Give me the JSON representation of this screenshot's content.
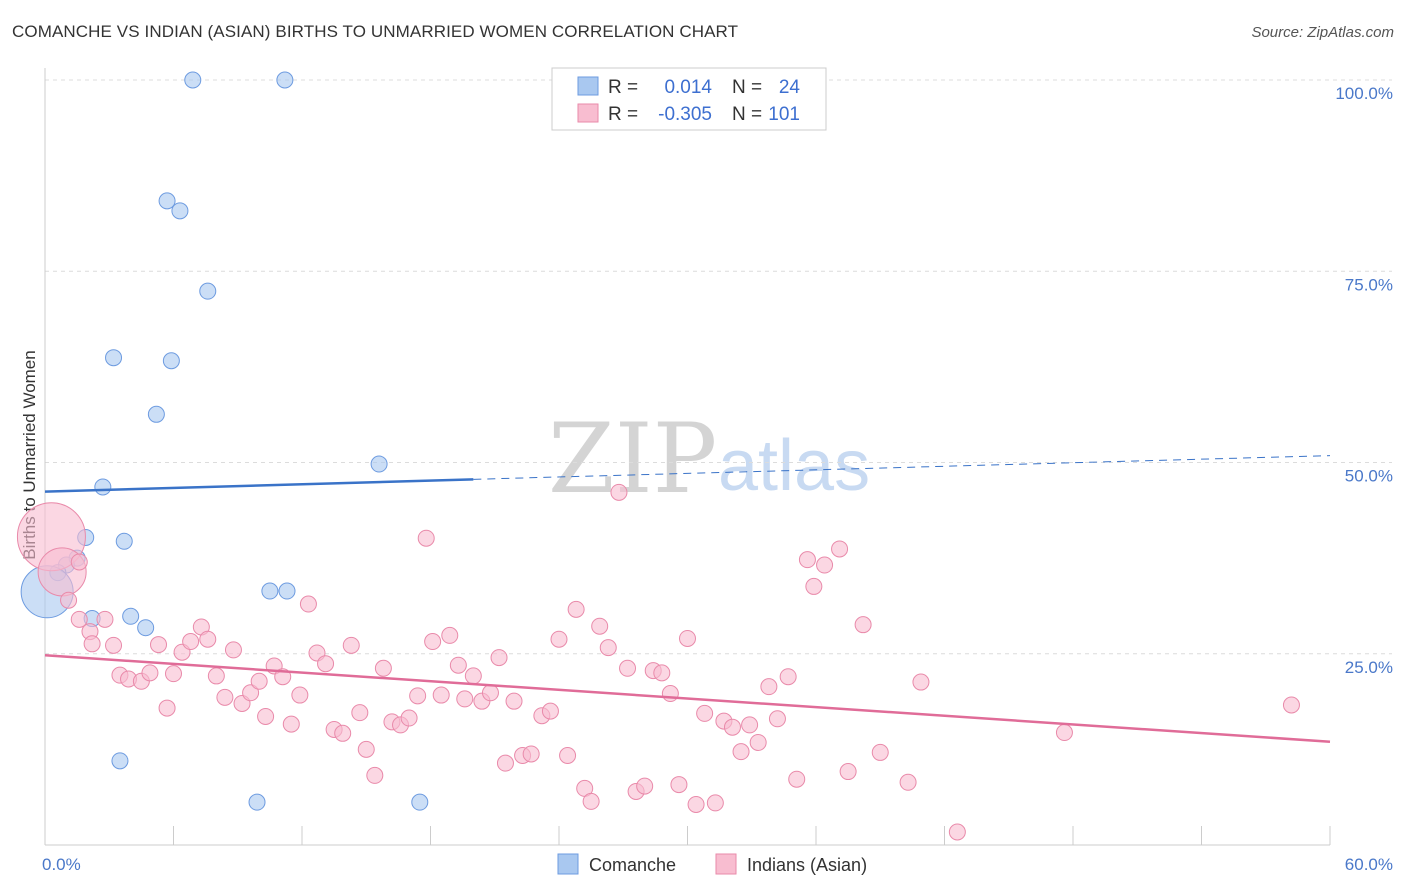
{
  "title": "COMANCHE VS INDIAN (ASIAN) BIRTHS TO UNMARRIED WOMEN CORRELATION CHART",
  "source": "Source: ZipAtlas.com",
  "watermark": {
    "part1": "ZIP",
    "part2": "atlas"
  },
  "legend": {
    "rows": [
      {
        "r_label": "R =",
        "r_value": "0.014",
        "n_label": "N =",
        "n_value": "24",
        "color": "#a9c8f0",
        "stroke": "#6d9be0"
      },
      {
        "r_label": "R =",
        "r_value": "-0.305",
        "n_label": "N =",
        "n_value": "101",
        "color": "#f8bdd0",
        "stroke": "#e98aaa"
      }
    ]
  },
  "bottom_legend": [
    {
      "label": "Comanche",
      "color": "#a9c8f0",
      "stroke": "#6d9be0"
    },
    {
      "label": "Indians (Asian)",
      "color": "#f8bdd0",
      "stroke": "#e98aaa"
    }
  ],
  "chart_data": {
    "type": "scatter",
    "xlabel": "",
    "ylabel": "Births to Unmarried Women",
    "xlim": [
      0,
      60
    ],
    "ylim": [
      0,
      100
    ],
    "x_ticks": [
      {
        "value": 0,
        "label": "0.0%"
      },
      {
        "value": 60,
        "label": "60.0%"
      }
    ],
    "y_ticks": [
      {
        "value": 25,
        "label": "25.0%"
      },
      {
        "value": 50,
        "label": "50.0%"
      },
      {
        "value": 75,
        "label": "75.0%"
      },
      {
        "value": 100,
        "label": "100.0%"
      }
    ],
    "grid": true,
    "series": [
      {
        "name": "Comanche",
        "color": "#a9c8f0",
        "stroke": "#6d9be0",
        "trend": {
          "x0": 0,
          "y0": 46.2,
          "x1": 20,
          "y1": 47.8,
          "dash_to_x": 60,
          "dash_to_y": 50.9,
          "color": "#3a73c8"
        },
        "points": [
          [
            6.9,
            100
          ],
          [
            11.2,
            100
          ],
          [
            5.7,
            84.2
          ],
          [
            6.3,
            82.9
          ],
          [
            7.6,
            72.4
          ],
          [
            3.2,
            63.7
          ],
          [
            5.9,
            63.3
          ],
          [
            5.2,
            56.3
          ],
          [
            15.6,
            49.8
          ],
          [
            2.7,
            46.8
          ],
          [
            1.9,
            40.2
          ],
          [
            3.7,
            39.7
          ],
          [
            1.5,
            37.5
          ],
          [
            1.0,
            36.6
          ],
          [
            0.6,
            35.6
          ],
          [
            0.1,
            33.1
          ],
          [
            10.5,
            33.2
          ],
          [
            11.3,
            33.2
          ],
          [
            2.2,
            29.6
          ],
          [
            4.0,
            29.9
          ],
          [
            4.7,
            28.4
          ],
          [
            3.5,
            11.0
          ],
          [
            9.9,
            5.6
          ],
          [
            17.5,
            5.6
          ]
        ],
        "sizes": {
          "0.1,33.1": 26
        }
      },
      {
        "name": "Indians (Asian)",
        "color": "#f8bdd0",
        "stroke": "#e98aaa",
        "trend": {
          "x0": 0,
          "y0": 24.8,
          "x1": 60,
          "y1": 13.5,
          "color": "#e06c98"
        },
        "points": [
          [
            0.3,
            40.3
          ],
          [
            0.8,
            35.7
          ],
          [
            1.1,
            32.0
          ],
          [
            1.6,
            29.5
          ],
          [
            2.1,
            27.9
          ],
          [
            2.2,
            26.3
          ],
          [
            2.8,
            29.5
          ],
          [
            3.2,
            26.1
          ],
          [
            3.5,
            22.2
          ],
          [
            3.9,
            21.7
          ],
          [
            4.5,
            21.4
          ],
          [
            4.9,
            22.5
          ],
          [
            5.3,
            26.2
          ],
          [
            5.7,
            17.9
          ],
          [
            6.0,
            22.4
          ],
          [
            6.4,
            25.2
          ],
          [
            6.8,
            26.6
          ],
          [
            7.3,
            28.5
          ],
          [
            7.6,
            26.9
          ],
          [
            8.0,
            22.1
          ],
          [
            8.4,
            19.3
          ],
          [
            8.8,
            25.5
          ],
          [
            9.2,
            18.5
          ],
          [
            9.6,
            19.9
          ],
          [
            10.0,
            21.4
          ],
          [
            10.3,
            16.8
          ],
          [
            10.7,
            23.4
          ],
          [
            11.1,
            22.0
          ],
          [
            11.5,
            15.8
          ],
          [
            11.9,
            19.6
          ],
          [
            12.3,
            31.5
          ],
          [
            12.7,
            25.1
          ],
          [
            13.1,
            23.7
          ],
          [
            13.5,
            15.1
          ],
          [
            13.9,
            14.6
          ],
          [
            14.3,
            26.1
          ],
          [
            14.7,
            17.3
          ],
          [
            15.0,
            12.5
          ],
          [
            15.4,
            9.1
          ],
          [
            15.8,
            23.1
          ],
          [
            16.2,
            16.1
          ],
          [
            16.6,
            15.7
          ],
          [
            17.0,
            16.6
          ],
          [
            17.4,
            19.5
          ],
          [
            17.8,
            40.1
          ],
          [
            18.1,
            26.6
          ],
          [
            18.5,
            19.6
          ],
          [
            18.9,
            27.4
          ],
          [
            19.3,
            23.5
          ],
          [
            19.6,
            19.1
          ],
          [
            20.0,
            22.1
          ],
          [
            20.4,
            18.8
          ],
          [
            20.8,
            19.9
          ],
          [
            21.2,
            24.5
          ],
          [
            21.5,
            10.7
          ],
          [
            21.9,
            18.8
          ],
          [
            22.3,
            11.7
          ],
          [
            22.7,
            11.9
          ],
          [
            23.2,
            16.9
          ],
          [
            23.6,
            17.5
          ],
          [
            24.0,
            26.9
          ],
          [
            24.4,
            11.7
          ],
          [
            24.8,
            30.8
          ],
          [
            25.2,
            7.4
          ],
          [
            25.5,
            5.7
          ],
          [
            25.9,
            28.6
          ],
          [
            26.3,
            25.8
          ],
          [
            26.8,
            46.1
          ],
          [
            27.2,
            23.1
          ],
          [
            27.6,
            7.0
          ],
          [
            28.0,
            7.7
          ],
          [
            28.4,
            22.8
          ],
          [
            28.8,
            22.5
          ],
          [
            29.2,
            19.8
          ],
          [
            29.6,
            7.9
          ],
          [
            30.0,
            27.0
          ],
          [
            30.4,
            5.3
          ],
          [
            30.8,
            17.2
          ],
          [
            31.3,
            5.5
          ],
          [
            31.7,
            16.2
          ],
          [
            32.1,
            15.4
          ],
          [
            32.5,
            12.2
          ],
          [
            32.9,
            15.7
          ],
          [
            33.3,
            13.4
          ],
          [
            33.8,
            20.7
          ],
          [
            34.2,
            16.5
          ],
          [
            34.7,
            22.0
          ],
          [
            35.1,
            8.6
          ],
          [
            35.6,
            37.3
          ],
          [
            35.9,
            33.8
          ],
          [
            36.4,
            36.6
          ],
          [
            37.1,
            38.7
          ],
          [
            37.5,
            9.6
          ],
          [
            38.2,
            28.8
          ],
          [
            39.0,
            12.1
          ],
          [
            40.3,
            8.2
          ],
          [
            40.9,
            21.3
          ],
          [
            42.6,
            1.7
          ],
          [
            47.6,
            14.7
          ],
          [
            58.2,
            18.3
          ],
          [
            1.6,
            37.0
          ]
        ],
        "sizes": {
          "0.3,40.3": 34,
          "0.8,35.7": 24,
          "1.1,32.0": 18
        }
      }
    ]
  }
}
